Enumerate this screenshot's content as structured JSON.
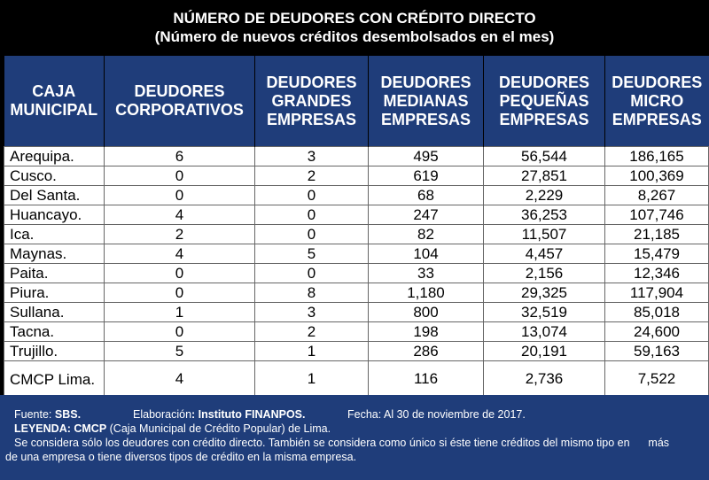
{
  "title": {
    "line1": "NÚMERO DE DEUDORES CON CRÉDITO DIRECTO",
    "line2": "(Número de nuevos créditos desembolsados en el mes)"
  },
  "table": {
    "headers": [
      [
        "CAJA",
        "MUNICIPAL"
      ],
      [
        "DEUDORES",
        "CORPORATIVOS"
      ],
      [
        "DEUDORES",
        "GRANDES",
        "EMPRESAS"
      ],
      [
        "DEUDORES",
        "MEDIANAS",
        "EMPRESAS"
      ],
      [
        "DEUDORES",
        "PEQUEÑAS",
        "EMPRESAS"
      ],
      [
        "DEUDORES",
        "MICRO",
        "EMPRESAS"
      ]
    ],
    "rows": [
      [
        "Arequipa.",
        "6",
        "3",
        "495",
        "56,544",
        "186,165"
      ],
      [
        "Cusco.",
        "0",
        "2",
        "619",
        "27,851",
        "100,369"
      ],
      [
        "Del Santa.",
        "0",
        "0",
        "68",
        "2,229",
        "8,267"
      ],
      [
        "Huancayo.",
        "4",
        "0",
        "247",
        "36,253",
        "107,746"
      ],
      [
        "Ica.",
        "2",
        "0",
        "82",
        "11,507",
        "21,185"
      ],
      [
        "Maynas.",
        "4",
        "5",
        "104",
        "4,457",
        "15,479"
      ],
      [
        "Paita.",
        "0",
        "0",
        "33",
        "2,156",
        "12,346"
      ],
      [
        "Piura.",
        "0",
        "8",
        "1,180",
        "29,325",
        "117,904"
      ],
      [
        "Sullana.",
        "1",
        "3",
        "800",
        "32,519",
        "85,018"
      ],
      [
        "Tacna.",
        "0",
        "2",
        "198",
        "13,074",
        "24,600"
      ],
      [
        "Trujillo.",
        "5",
        "1",
        "286",
        "20,191",
        "59,163"
      ],
      [
        "CMCP Lima.",
        "4",
        "1",
        "116",
        "2,736",
        "7,522"
      ]
    ]
  },
  "footer": {
    "fuente_label": "Fuente: ",
    "fuente_value": "SBS.",
    "elab_label": "Elaboración",
    "elab_value": ": Instituto FINANPOS.",
    "fecha": "Fecha: Al 30 de noviembre de 2017.",
    "leyenda_label": "LEYENDA: CMCP",
    "leyenda_text": " (Caja Municipal de Crédito Popular) de Lima.",
    "note_line1": "Se considera sólo los deudores con crédito directo. También se considera como único si éste tiene créditos del mismo tipo en      más",
    "note_line2": "de una empresa o tiene diversos tipos de crédito en la misma empresa."
  },
  "colors": {
    "header_bg": "#1f3d7a",
    "background": "#000000",
    "cell_bg": "#ffffff"
  }
}
